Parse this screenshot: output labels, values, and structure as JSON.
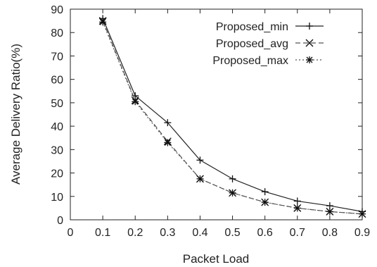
{
  "chart_data": {
    "type": "line",
    "xlabel": "Packet Load",
    "ylabel": "Average Delivery Ratio(%)",
    "xlim": [
      0,
      0.9
    ],
    "ylim": [
      0,
      90
    ],
    "x_ticks": [
      "0",
      "0.1",
      "0.2",
      "0.3",
      "0.4",
      "0.5",
      "0.6",
      "0.7",
      "0.8",
      "0.9"
    ],
    "y_ticks": [
      "0",
      "10",
      "20",
      "30",
      "40",
      "50",
      "60",
      "70",
      "80",
      "90"
    ],
    "x": [
      0.1,
      0.2,
      0.3,
      0.4,
      0.5,
      0.6,
      0.7,
      0.8,
      0.9
    ],
    "grid": false,
    "legend_position": "top-right",
    "series": [
      {
        "name": "Proposed_min",
        "marker": "plus",
        "line_style": "solid",
        "values": [
          86,
          53,
          41.5,
          25.5,
          17.5,
          12,
          8,
          6,
          3.5
        ]
      },
      {
        "name": "Proposed_avg",
        "marker": "cross",
        "line_style": "dashed",
        "values": [
          85,
          51,
          33.5,
          17.5,
          11.5,
          7.5,
          5,
          3.5,
          2.5
        ]
      },
      {
        "name": "Proposed_max",
        "marker": "star",
        "line_style": "dotted",
        "values": [
          84.5,
          50.5,
          33,
          17.5,
          11.5,
          7.5,
          5,
          3.5,
          2.5
        ]
      }
    ]
  }
}
